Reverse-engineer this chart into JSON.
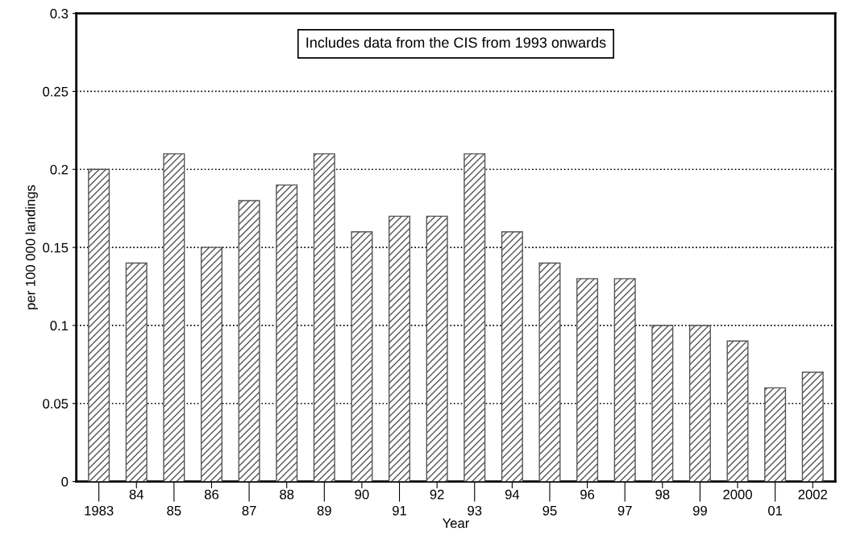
{
  "chart_data": {
    "type": "bar",
    "categories": [
      "1983",
      "84",
      "85",
      "86",
      "87",
      "88",
      "89",
      "90",
      "91",
      "92",
      "93",
      "94",
      "95",
      "96",
      "97",
      "98",
      "99",
      "2000",
      "01",
      "2002"
    ],
    "values": [
      0.2,
      0.14,
      0.21,
      0.15,
      0.18,
      0.19,
      0.21,
      0.16,
      0.17,
      0.17,
      0.21,
      0.16,
      0.14,
      0.13,
      0.13,
      0.1,
      0.1,
      0.09,
      0.06,
      0.07
    ],
    "color": "#555555",
    "xlabel": "Year",
    "ylabel": "per 100 000 landings",
    "annotations": [
      "Includes data from the CIS from 1993 onwards"
    ],
    "ylim": [
      0,
      0.3
    ],
    "yticks": [
      0,
      0.05,
      0.1,
      0.15,
      0.2,
      0.25,
      0.3
    ],
    "grid": "y",
    "legend": false
  }
}
